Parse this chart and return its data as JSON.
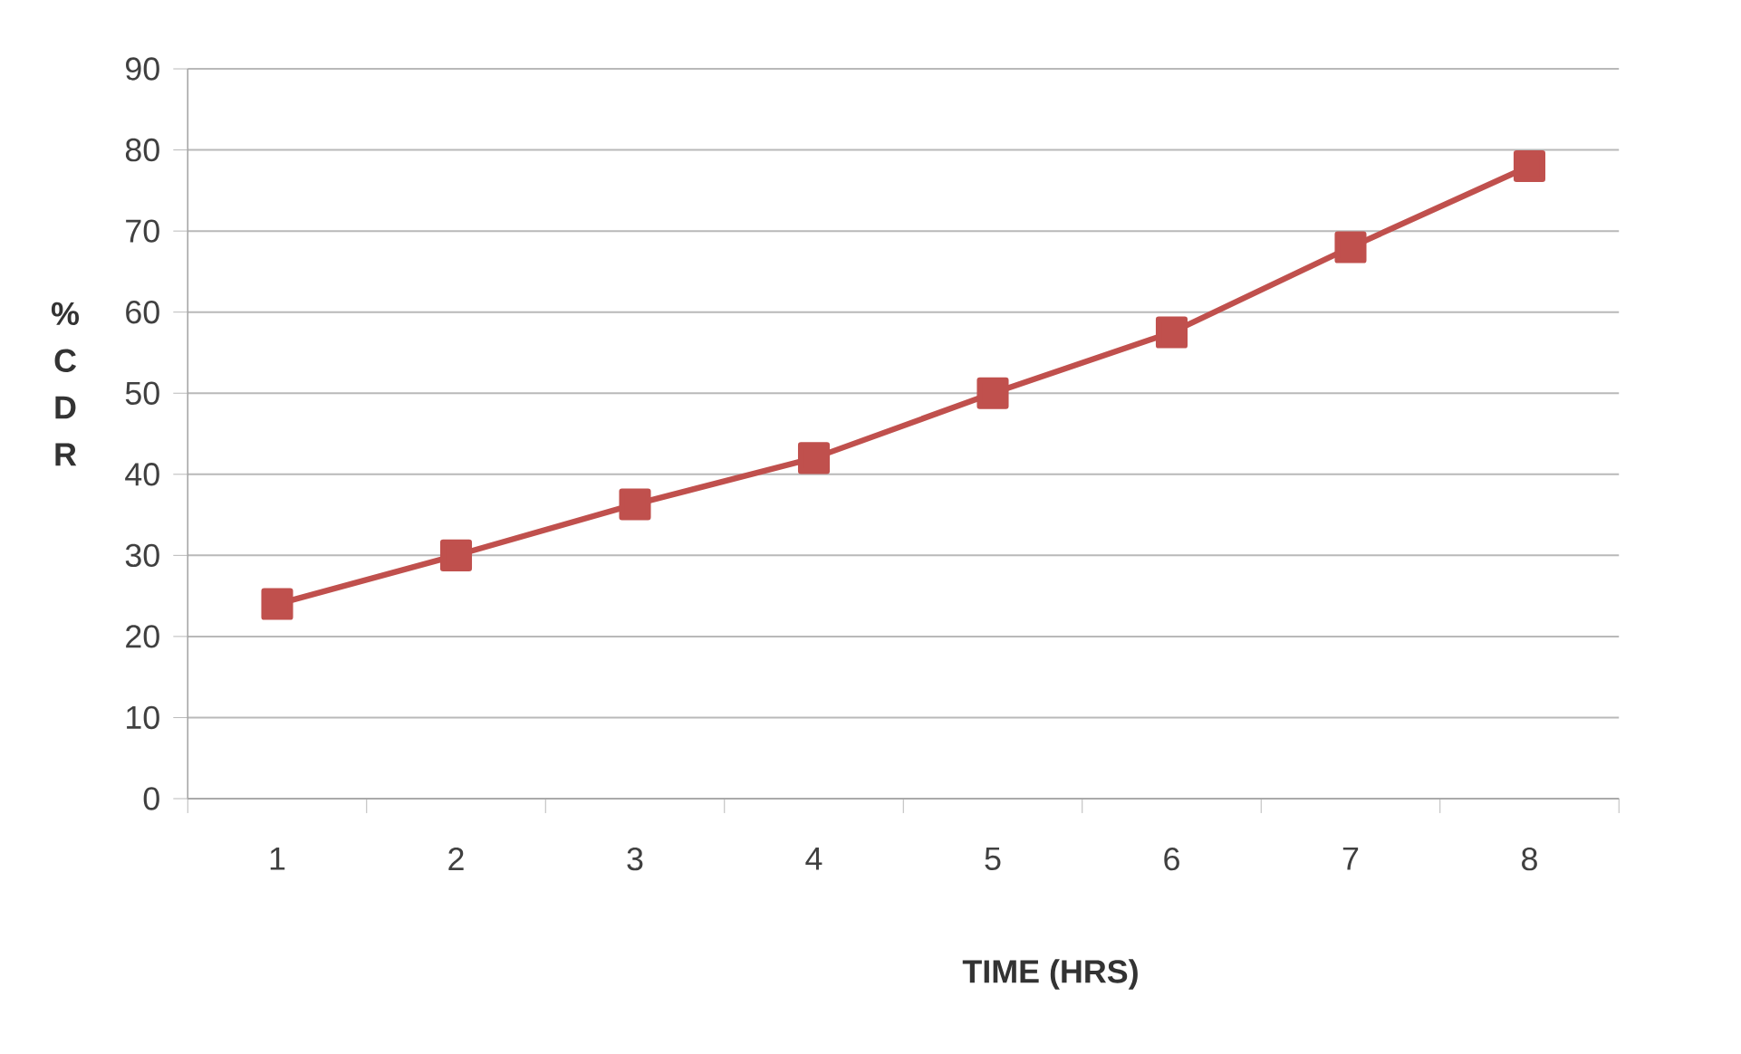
{
  "chart_data": {
    "type": "line",
    "xlabel": "TIME (HRS)",
    "ylabel": "% C D R",
    "categories": [
      "1",
      "2",
      "3",
      "4",
      "5",
      "6",
      "7",
      "8"
    ],
    "series": [
      {
        "color": "#c0504d",
        "values": [
          24,
          30,
          36.3,
          42,
          50,
          57.5,
          68,
          78
        ]
      }
    ],
    "ylim": [
      0,
      90
    ],
    "yticks": [
      0,
      10,
      20,
      30,
      40,
      50,
      60,
      70,
      80,
      90
    ],
    "grid": "y",
    "legend": false,
    "marker": "square",
    "line_style": "solid"
  }
}
